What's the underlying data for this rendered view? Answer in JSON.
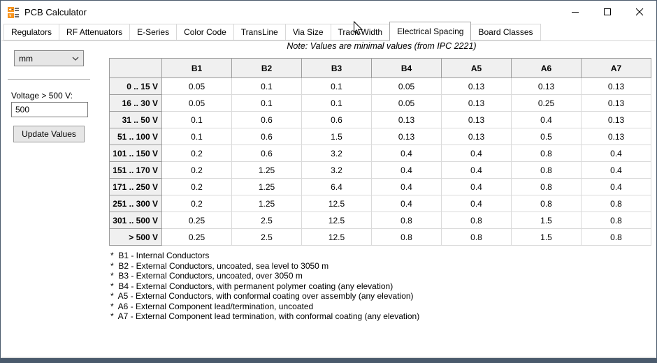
{
  "window": {
    "title": "PCB Calculator",
    "controls": {
      "minimize": "minimize",
      "maximize": "maximize",
      "close": "close"
    }
  },
  "tabs": {
    "items": [
      "Regulators",
      "RF Attenuators",
      "E-Series",
      "Color Code",
      "TransLine",
      "Via Size",
      "Track Width",
      "Electrical Spacing",
      "Board Classes"
    ],
    "selected_index": 7
  },
  "sidebar": {
    "units_value": "mm",
    "voltage_label": "Voltage > 500 V:",
    "voltage_value": "500",
    "update_button_label": "Update Values"
  },
  "main": {
    "note": "Note: Values are minimal values (from IPC 2221)"
  },
  "spacing_table": {
    "columns": [
      "B1",
      "B2",
      "B3",
      "B4",
      "A5",
      "A6",
      "A7"
    ],
    "rows": [
      {
        "label": "0 .. 15 V",
        "values": [
          "0.05",
          "0.1",
          "0.1",
          "0.05",
          "0.13",
          "0.13",
          "0.13"
        ]
      },
      {
        "label": "16 .. 30 V",
        "values": [
          "0.05",
          "0.1",
          "0.1",
          "0.05",
          "0.13",
          "0.25",
          "0.13"
        ]
      },
      {
        "label": "31 .. 50 V",
        "values": [
          "0.1",
          "0.6",
          "0.6",
          "0.13",
          "0.13",
          "0.4",
          "0.13"
        ]
      },
      {
        "label": "51 .. 100 V",
        "values": [
          "0.1",
          "0.6",
          "1.5",
          "0.13",
          "0.13",
          "0.5",
          "0.13"
        ]
      },
      {
        "label": "101 .. 150 V",
        "values": [
          "0.2",
          "0.6",
          "3.2",
          "0.4",
          "0.4",
          "0.8",
          "0.4"
        ]
      },
      {
        "label": "151 .. 170 V",
        "values": [
          "0.2",
          "1.25",
          "3.2",
          "0.4",
          "0.4",
          "0.8",
          "0.4"
        ]
      },
      {
        "label": "171 .. 250 V",
        "values": [
          "0.2",
          "1.25",
          "6.4",
          "0.4",
          "0.4",
          "0.8",
          "0.4"
        ]
      },
      {
        "label": "251 .. 300 V",
        "values": [
          "0.2",
          "1.25",
          "12.5",
          "0.4",
          "0.4",
          "0.8",
          "0.8"
        ]
      },
      {
        "label": "301 .. 500 V",
        "values": [
          "0.25",
          "2.5",
          "12.5",
          "0.8",
          "0.8",
          "1.5",
          "0.8"
        ]
      },
      {
        "label": "> 500 V",
        "values": [
          "0.25",
          "2.5",
          "12.5",
          "0.8",
          "0.8",
          "1.5",
          "0.8"
        ]
      }
    ]
  },
  "footnotes": [
    "*  B1 - Internal Conductors",
    "*  B2 - External Conductors, uncoated, sea level to 3050 m",
    "*  B3 - External Conductors, uncoated, over 3050 m",
    "*  B4 - External Conductors, with permanent polymer coating (any elevation)",
    "*  A5 - External Conductors, with conformal coating over assembly (any elevation)",
    "*  A6 - External Component lead/termination, uncoated",
    "*  A7 - External Component lead termination, with conformal coating (any elevation)"
  ],
  "colors": {
    "accent_orange": "#f7941e",
    "window_border": "#4a5a6c",
    "header_bg": "#f0f0f0"
  }
}
